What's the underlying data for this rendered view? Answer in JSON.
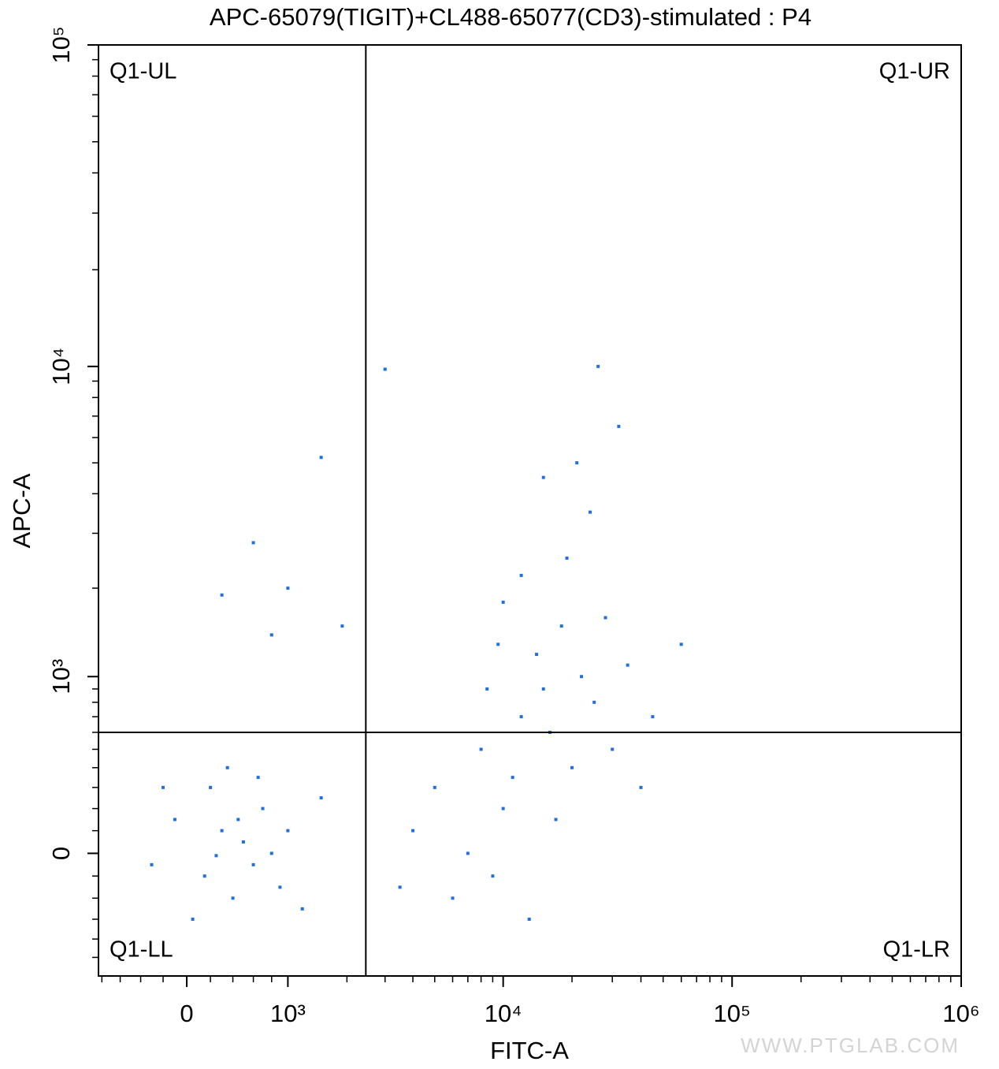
{
  "chart_data": {
    "type": "scatter",
    "title": "APC-65079(TIGIT)+CL488-65077(CD3)-stimulated : P4",
    "x_label": "FITC-A",
    "y_label": "APC-A",
    "watermark": "WWW.PTGLAB.COM",
    "xscale": "biexponential",
    "yscale": "biexponential",
    "xlim": [
      -840,
      1000000
    ],
    "ylim": [
      -610,
      100000
    ],
    "xticks": [
      0,
      {
        "value": 1000,
        "label": "10³"
      },
      {
        "value": 10000,
        "label": "10⁴"
      },
      {
        "value": 100000,
        "label": "10⁵"
      },
      {
        "value": 1000000,
        "label": "10⁶"
      }
    ],
    "yticks": [
      0,
      {
        "value": 1000,
        "label": "10³"
      },
      {
        "value": 10000,
        "label": "10⁴"
      },
      {
        "value": 100000,
        "label": "10⁵"
      }
    ],
    "xminorticks": [
      -800,
      -600,
      -400,
      -200,
      200,
      400,
      600,
      800,
      2000,
      3000,
      4000,
      5000,
      6000,
      7000,
      8000,
      9000,
      20000,
      30000,
      40000,
      50000,
      60000,
      70000,
      80000,
      90000,
      200000,
      300000,
      400000,
      500000,
      600000,
      700000,
      800000,
      900000
    ],
    "yminorticks": [
      -500,
      -400,
      -300,
      -200,
      -100,
      100,
      200,
      300,
      400,
      500,
      600,
      700,
      800,
      900,
      2000,
      3000,
      4000,
      5000,
      6000,
      7000,
      8000,
      9000,
      20000,
      30000,
      40000,
      50000,
      60000,
      70000,
      80000,
      90000
    ],
    "gates": {
      "x": 2450,
      "y": 600
    },
    "quadrants": {
      "ul": "Q1-UL",
      "ur": "Q1-UR",
      "ll": "Q1-LL",
      "lr": "Q1-LR"
    },
    "color": "#1f6fe0",
    "x": [
      300,
      500,
      150,
      700,
      400,
      800,
      -100,
      200,
      600,
      1000,
      1500,
      -300,
      50,
      900,
      1200,
      350,
      -200,
      450,
      650,
      250,
      5000,
      8000,
      10000,
      12000,
      15000,
      20000,
      9000,
      14000,
      18000,
      25000,
      7000,
      11000,
      16000,
      22000,
      30000,
      6000,
      4000,
      3500,
      13000,
      17000,
      10000,
      19000,
      24000,
      28000,
      12000,
      9500,
      35000,
      40000,
      45000,
      8500,
      21000,
      26000,
      3000,
      60000,
      15000,
      32000,
      600,
      1000,
      300,
      1500,
      800,
      1900
    ],
    "y": [
      100,
      50,
      -100,
      200,
      -200,
      0,
      150,
      300,
      -50,
      100,
      250,
      -50,
      -300,
      -150,
      -250,
      400,
      300,
      150,
      350,
      -10,
      300,
      500,
      200,
      700,
      900,
      400,
      -100,
      1200,
      1500,
      800,
      0,
      350,
      600,
      1000,
      500,
      -200,
      100,
      -150,
      -300,
      150,
      1800,
      2500,
      3500,
      1600,
      2200,
      1300,
      1100,
      300,
      700,
      900,
      5000,
      10000,
      9800,
      1300,
      4500,
      6500,
      2800,
      2000,
      1900,
      5200,
      1400,
      1500
    ]
  }
}
